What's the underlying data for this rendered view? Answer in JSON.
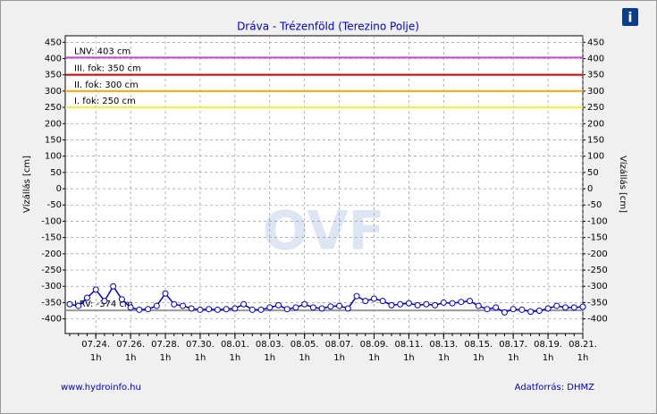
{
  "chart_data": {
    "type": "line",
    "title": "Dráva - Trézenföld (Terezino Polje)",
    "y_label": "Vízállás [cm]",
    "watermark": "OVF",
    "footer_left": "www.hydroinfo.hu",
    "footer_right": "Adatforrás: DHMZ",
    "info_icon": "i",
    "x_sublabel": "1h",
    "categories": [
      null,
      null,
      null,
      "07.24.",
      null,
      null,
      null,
      "07.26.",
      null,
      null,
      null,
      "07.28.",
      null,
      null,
      null,
      "07.30.",
      null,
      null,
      null,
      "08.01.",
      null,
      null,
      null,
      "08.03.",
      null,
      null,
      null,
      "08.05.",
      null,
      null,
      null,
      "08.07.",
      null,
      null,
      null,
      "08.09.",
      null,
      null,
      null,
      "08.11.",
      null,
      null,
      null,
      "08.13.",
      null,
      null,
      null,
      "08.15.",
      null,
      null,
      null,
      "08.17.",
      null,
      null,
      null,
      "08.19.",
      null,
      null,
      null,
      "08.21."
    ],
    "series": [
      {
        "name": "Vízállás",
        "color": "#0000cc",
        "values": [
          -355,
          -360,
          -335,
          -310,
          -345,
          -300,
          -340,
          -365,
          -372,
          -370,
          -360,
          -322,
          -355,
          -360,
          -368,
          -372,
          -370,
          -372,
          -370,
          -368,
          -355,
          -372,
          -372,
          -365,
          -358,
          -370,
          -365,
          -355,
          -365,
          -368,
          -362,
          -360,
          -368,
          -330,
          -345,
          -338,
          -345,
          -358,
          -355,
          -352,
          -358,
          -355,
          -358,
          -350,
          -352,
          -348,
          -345,
          -360,
          -370,
          -365,
          -380,
          -370,
          -372,
          -378,
          -375,
          -368,
          -360,
          -365,
          -365,
          -363
        ]
      }
    ],
    "ref_lines": [
      {
        "label": "LNV: 403 cm",
        "value": 403,
        "color": "#cc44cc"
      },
      {
        "label": "III. fok: 350 cm",
        "value": 350,
        "color": "#cc0000"
      },
      {
        "label": "II. fok: 300 cm",
        "value": 300,
        "color": "#ffaa00"
      },
      {
        "label": "I. fok: 250 cm",
        "value": 250,
        "color": "#eeee44"
      },
      {
        "label": "LRV: -374 cm",
        "value": -374,
        "color": "#999999"
      }
    ],
    "ylim": [
      -445,
      470
    ],
    "yticks": [
      450,
      400,
      350,
      300,
      250,
      200,
      150,
      100,
      50,
      0,
      -50,
      -100,
      -150,
      -200,
      -250,
      -300,
      -350,
      -400
    ],
    "grid": true
  }
}
